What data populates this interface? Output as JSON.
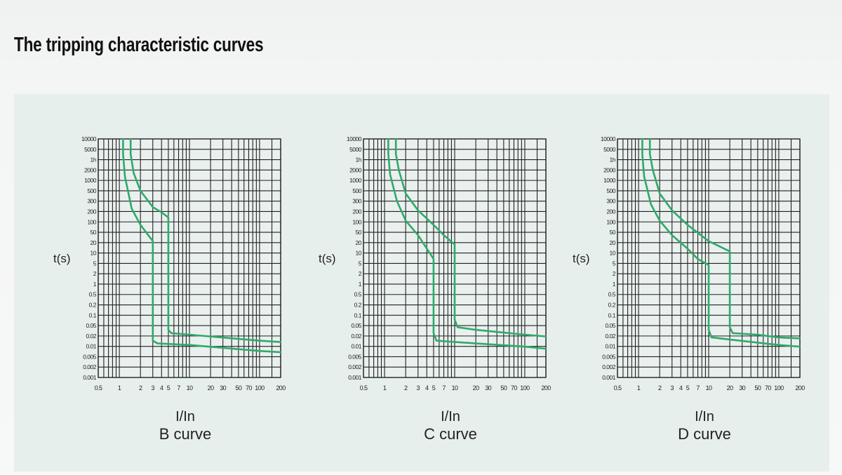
{
  "page": {
    "title": "The tripping characteristic curves"
  },
  "colors": {
    "curve": "#2eaa6a",
    "grid": "#222222",
    "panel": "#e7efed"
  },
  "chart_data": [
    {
      "type": "line",
      "title": "",
      "subtitle": "B curve",
      "xlabel": "I/In",
      "ylabel": "t(s)",
      "x_scale": "log",
      "y_scale": "log",
      "xlim": [
        0.5,
        200
      ],
      "ylim": [
        0.001,
        10000
      ],
      "x_ticks": [
        "0.5",
        "1",
        "2",
        "3",
        "4",
        "5",
        "7",
        "10",
        "20",
        "30",
        "50",
        "70",
        "100",
        "200"
      ],
      "y_ticks": [
        "10000",
        "5000",
        "1h",
        "2000",
        "1000",
        "500",
        "300",
        "200",
        "100",
        "50",
        "20",
        "10",
        "5",
        "2",
        "1",
        "0.5",
        "0.2",
        "0.1",
        "0.05",
        "0.02",
        "0.01",
        "0.005",
        "0.002",
        "0.001"
      ],
      "grid": true,
      "series": [
        {
          "x": [
            1.13,
            1.13,
            1.2,
            1.5,
            2,
            3,
            3,
            3.5,
            10,
            100,
            200
          ],
          "y": [
            10000,
            3600,
            800,
            90,
            30,
            10,
            0.012,
            0.01,
            0.009,
            0.006,
            0.0055
          ]
        },
        {
          "x": [
            1.45,
            1.45,
            1.6,
            2,
            3,
            4,
            5,
            5,
            5.5,
            10,
            100,
            200
          ],
          "y": [
            10000,
            3600,
            1000,
            300,
            100,
            70,
            50,
            0.025,
            0.02,
            0.018,
            0.012,
            0.011
          ]
        }
      ]
    },
    {
      "type": "line",
      "title": "",
      "subtitle": "C curve",
      "xlabel": "I/In",
      "ylabel": "t(s)",
      "x_scale": "log",
      "y_scale": "log",
      "xlim": [
        0.5,
        200
      ],
      "ylim": [
        0.001,
        10000
      ],
      "x_ticks": [
        "0.5",
        "1",
        "2",
        "3",
        "4",
        "5",
        "7",
        "10",
        "20",
        "30",
        "50",
        "70",
        "100",
        "200"
      ],
      "y_ticks": [
        "10000",
        "5000",
        "1h",
        "2000",
        "1000",
        "500",
        "300",
        "200",
        "100",
        "50",
        "20",
        "10",
        "5",
        "2",
        "1",
        "0.5",
        "0.2",
        "0.1",
        "0.05",
        "0.02",
        "0.01",
        "0.005",
        "0.002",
        "0.001"
      ],
      "grid": true,
      "series": [
        {
          "x": [
            1.13,
            1.13,
            1.2,
            1.5,
            2,
            3,
            5,
            5,
            5.5,
            10,
            100,
            200
          ],
          "y": [
            10000,
            3600,
            900,
            150,
            40,
            15,
            3,
            0.02,
            0.012,
            0.011,
            0.008,
            0.007
          ]
        },
        {
          "x": [
            1.45,
            1.45,
            1.6,
            2,
            3,
            5,
            7,
            10,
            10,
            11,
            20,
            100,
            200
          ],
          "y": [
            10000,
            3600,
            1200,
            250,
            80,
            30,
            15,
            8,
            0.05,
            0.03,
            0.025,
            0.018,
            0.016
          ]
        }
      ]
    },
    {
      "type": "line",
      "title": "",
      "subtitle": "D curve",
      "xlabel": "I/In",
      "ylabel": "t(s)",
      "x_scale": "log",
      "y_scale": "log",
      "xlim": [
        0.5,
        200
      ],
      "ylim": [
        0.001,
        10000
      ],
      "x_ticks": [
        "0.5",
        "1",
        "2",
        "3",
        "4",
        "5",
        "7",
        "10",
        "20",
        "30",
        "50",
        "70",
        "100",
        "200"
      ],
      "y_ticks": [
        "10000",
        "5000",
        "1h",
        "2000",
        "1000",
        "500",
        "300",
        "200",
        "100",
        "50",
        "20",
        "10",
        "5",
        "2",
        "1",
        "0.5",
        "0.2",
        "0.1",
        "0.05",
        "0.02",
        "0.01",
        "0.005",
        "0.002",
        "0.001"
      ],
      "grid": true,
      "series": [
        {
          "x": [
            1.13,
            1.13,
            1.2,
            1.5,
            2,
            3,
            5,
            7,
            10,
            10,
            11,
            20,
            100,
            200
          ],
          "y": [
            10000,
            3600,
            800,
            120,
            40,
            15,
            6,
            3,
            2,
            0.025,
            0.015,
            0.013,
            0.009,
            0.008
          ]
        },
        {
          "x": [
            1.45,
            1.45,
            1.6,
            2,
            3,
            5,
            10,
            20,
            20,
            22,
            50,
            100,
            200
          ],
          "y": [
            10000,
            3600,
            1200,
            250,
            80,
            30,
            10,
            5,
            0.03,
            0.02,
            0.018,
            0.015,
            0.014
          ]
        }
      ]
    }
  ]
}
